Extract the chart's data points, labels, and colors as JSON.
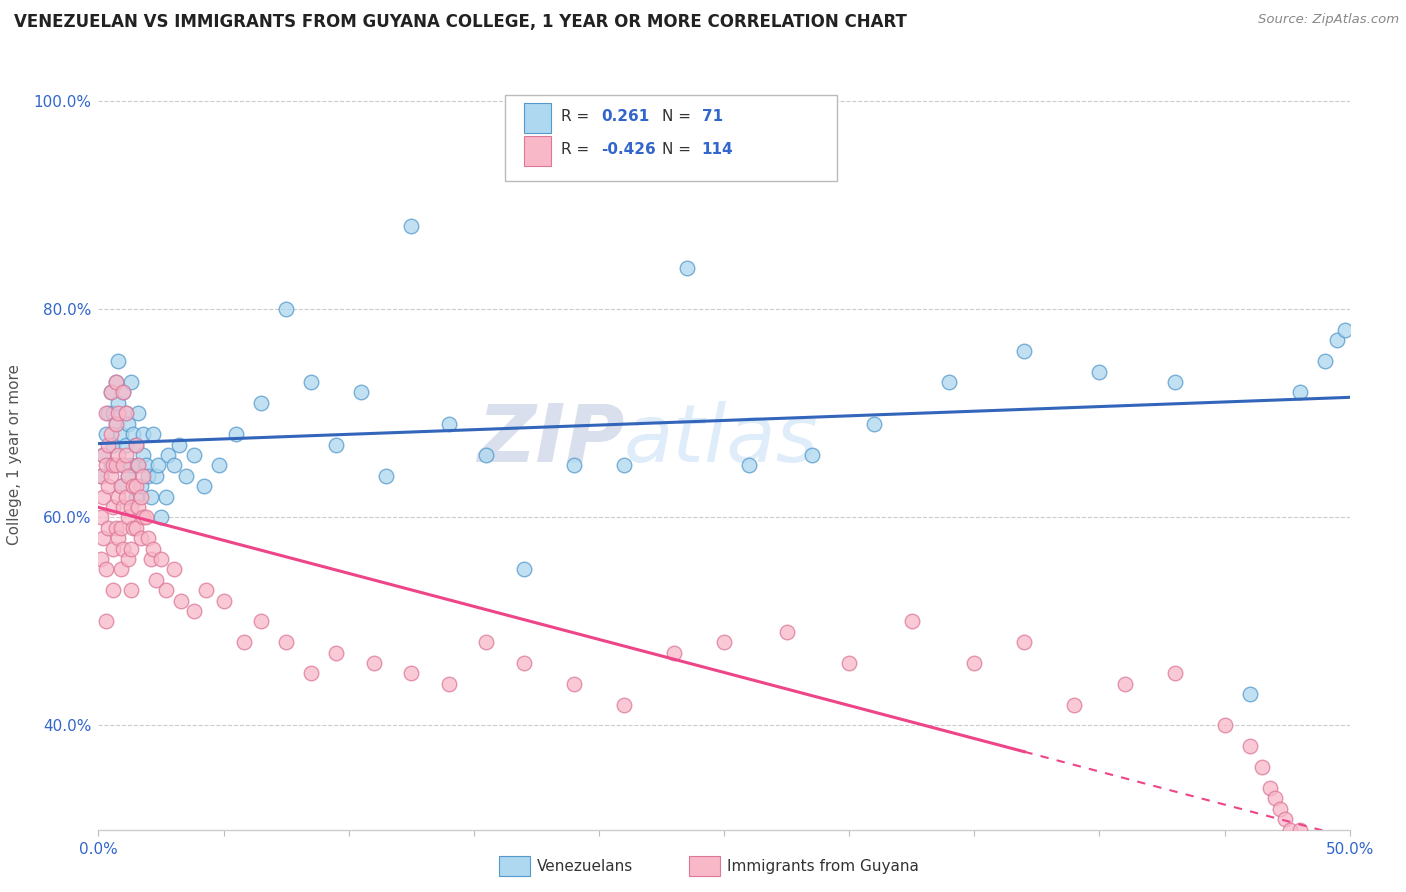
{
  "title": "VENEZUELAN VS IMMIGRANTS FROM GUYANA COLLEGE, 1 YEAR OR MORE CORRELATION CHART",
  "source_text": "Source: ZipAtlas.com",
  "ylabel": "College, 1 year or more",
  "x_min": 0.0,
  "x_max": 0.5,
  "y_min": 0.3,
  "y_max": 1.02,
  "legend_R1": "0.261",
  "legend_N1": "71",
  "legend_R2": "-0.426",
  "legend_N2": "114",
  "blue_scatter_color": "#add8f0",
  "blue_edge_color": "#5599cc",
  "pink_scatter_color": "#f8b8c8",
  "pink_edge_color": "#dd7799",
  "blue_line_color": "#3366bb",
  "pink_line_color": "#ee4488",
  "label1": "Venezuelans",
  "label2": "Immigrants from Guyana",
  "blue_x": [
    0.001,
    0.002,
    0.003,
    0.004,
    0.005,
    0.005,
    0.006,
    0.006,
    0.007,
    0.007,
    0.008,
    0.008,
    0.009,
    0.009,
    0.01,
    0.01,
    0.011,
    0.011,
    0.012,
    0.012,
    0.013,
    0.013,
    0.014,
    0.015,
    0.015,
    0.016,
    0.016,
    0.017,
    0.018,
    0.018,
    0.019,
    0.02,
    0.021,
    0.022,
    0.023,
    0.024,
    0.025,
    0.027,
    0.028,
    0.03,
    0.032,
    0.035,
    0.038,
    0.042,
    0.048,
    0.055,
    0.065,
    0.075,
    0.085,
    0.095,
    0.105,
    0.115,
    0.125,
    0.14,
    0.155,
    0.17,
    0.19,
    0.21,
    0.235,
    0.26,
    0.285,
    0.31,
    0.34,
    0.37,
    0.4,
    0.43,
    0.46,
    0.48,
    0.49,
    0.495,
    0.498
  ],
  "blue_y": [
    0.64,
    0.66,
    0.68,
    0.7,
    0.65,
    0.72,
    0.67,
    0.7,
    0.69,
    0.73,
    0.71,
    0.75,
    0.68,
    0.63,
    0.72,
    0.65,
    0.7,
    0.67,
    0.64,
    0.69,
    0.73,
    0.65,
    0.68,
    0.62,
    0.67,
    0.7,
    0.65,
    0.63,
    0.66,
    0.68,
    0.65,
    0.64,
    0.62,
    0.68,
    0.64,
    0.65,
    0.6,
    0.62,
    0.66,
    0.65,
    0.67,
    0.64,
    0.66,
    0.63,
    0.65,
    0.68,
    0.71,
    0.8,
    0.73,
    0.67,
    0.72,
    0.64,
    0.88,
    0.69,
    0.66,
    0.55,
    0.65,
    0.65,
    0.84,
    0.65,
    0.66,
    0.69,
    0.73,
    0.76,
    0.74,
    0.73,
    0.43,
    0.72,
    0.75,
    0.77,
    0.78
  ],
  "pink_x": [
    0.001,
    0.001,
    0.001,
    0.002,
    0.002,
    0.002,
    0.003,
    0.003,
    0.003,
    0.003,
    0.004,
    0.004,
    0.004,
    0.005,
    0.005,
    0.005,
    0.006,
    0.006,
    0.006,
    0.006,
    0.007,
    0.007,
    0.007,
    0.007,
    0.008,
    0.008,
    0.008,
    0.008,
    0.009,
    0.009,
    0.009,
    0.01,
    0.01,
    0.01,
    0.01,
    0.011,
    0.011,
    0.011,
    0.012,
    0.012,
    0.012,
    0.013,
    0.013,
    0.013,
    0.014,
    0.014,
    0.015,
    0.015,
    0.015,
    0.016,
    0.016,
    0.017,
    0.017,
    0.018,
    0.018,
    0.019,
    0.02,
    0.021,
    0.022,
    0.023,
    0.025,
    0.027,
    0.03,
    0.033,
    0.038,
    0.043,
    0.05,
    0.058,
    0.065,
    0.075,
    0.085,
    0.095,
    0.11,
    0.125,
    0.14,
    0.155,
    0.17,
    0.19,
    0.21,
    0.23,
    0.25,
    0.275,
    0.3,
    0.325,
    0.35,
    0.37,
    0.39,
    0.41,
    0.43,
    0.45,
    0.46,
    0.465,
    0.468,
    0.47,
    0.472,
    0.474,
    0.476,
    0.478,
    0.48,
    0.482,
    0.484,
    0.486,
    0.488,
    0.49,
    0.492,
    0.494,
    0.496,
    0.498,
    0.499,
    0.5,
    0.5,
    0.5,
    0.5,
    0.5
  ],
  "pink_y": [
    0.64,
    0.6,
    0.56,
    0.62,
    0.66,
    0.58,
    0.7,
    0.65,
    0.55,
    0.5,
    0.67,
    0.63,
    0.59,
    0.68,
    0.72,
    0.64,
    0.65,
    0.61,
    0.57,
    0.53,
    0.69,
    0.65,
    0.73,
    0.59,
    0.66,
    0.62,
    0.7,
    0.58,
    0.63,
    0.59,
    0.55,
    0.72,
    0.65,
    0.61,
    0.57,
    0.7,
    0.66,
    0.62,
    0.64,
    0.6,
    0.56,
    0.61,
    0.57,
    0.53,
    0.63,
    0.59,
    0.67,
    0.63,
    0.59,
    0.65,
    0.61,
    0.62,
    0.58,
    0.64,
    0.6,
    0.6,
    0.58,
    0.56,
    0.57,
    0.54,
    0.56,
    0.53,
    0.55,
    0.52,
    0.51,
    0.53,
    0.52,
    0.48,
    0.5,
    0.48,
    0.45,
    0.47,
    0.46,
    0.45,
    0.44,
    0.48,
    0.46,
    0.44,
    0.42,
    0.47,
    0.48,
    0.49,
    0.46,
    0.5,
    0.46,
    0.48,
    0.42,
    0.44,
    0.45,
    0.4,
    0.38,
    0.36,
    0.34,
    0.33,
    0.32,
    0.31,
    0.3,
    0.29,
    0.3,
    0.28,
    0.29,
    0.28,
    0.27,
    0.28,
    0.27,
    0.26,
    0.27,
    0.26,
    0.26,
    0.25,
    0.25,
    0.25,
    0.25,
    0.25
  ]
}
